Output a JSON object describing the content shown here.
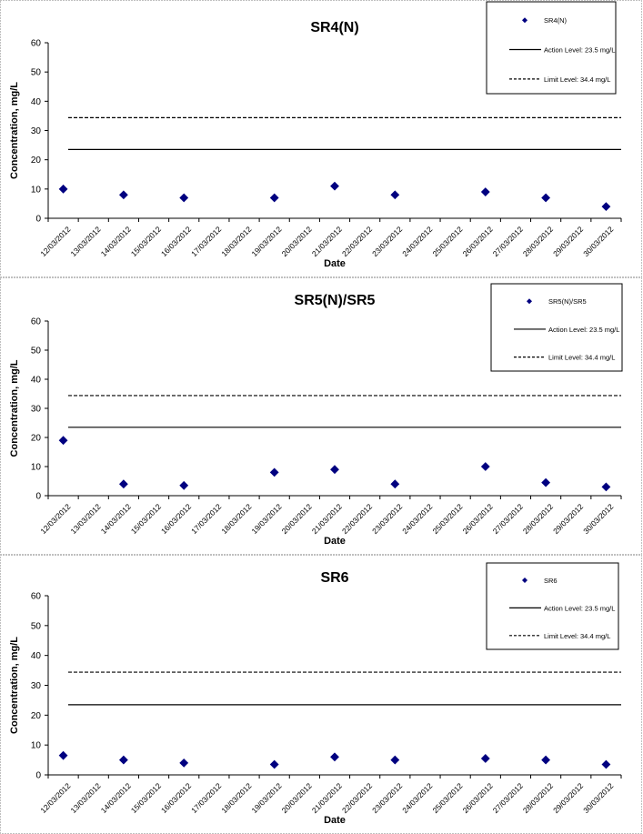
{
  "chart_data": [
    {
      "type": "scatter",
      "title": "SR4(N)",
      "xlabel": "Date",
      "ylabel": "Concentration, mg/L",
      "ylim": [
        0,
        60
      ],
      "yticks": [
        "0",
        "10",
        "20",
        "30",
        "40",
        "50",
        "60"
      ],
      "categories": [
        "12/03/2012",
        "13/03/2012",
        "14/03/2012",
        "15/03/2012",
        "16/03/2012",
        "17/03/2012",
        "18/03/2012",
        "19/03/2012",
        "20/03/2012",
        "21/03/2012",
        "22/03/2012",
        "23/03/2012",
        "24/03/2012",
        "25/03/2012",
        "26/03/2012",
        "27/03/2012",
        "28/03/2012",
        "29/03/2012",
        "30/03/2012"
      ],
      "series": [
        {
          "name": "SR4(N)",
          "color": "#000080",
          "points": [
            {
              "x": "12/03/2012",
              "y": 10
            },
            {
              "x": "14/03/2012",
              "y": 8
            },
            {
              "x": "16/03/2012",
              "y": 7
            },
            {
              "x": "19/03/2012",
              "y": 7
            },
            {
              "x": "21/03/2012",
              "y": 11
            },
            {
              "x": "23/03/2012",
              "y": 8
            },
            {
              "x": "26/03/2012",
              "y": 9
            },
            {
              "x": "28/03/2012",
              "y": 7
            },
            {
              "x": "30/03/2012",
              "y": 4
            }
          ]
        }
      ],
      "reference_lines": [
        {
          "label": "Action Level: 23.5 mg/L",
          "value": 23.5,
          "style": "solid"
        },
        {
          "label": "Limit Level: 34.4 mg/L",
          "value": 34.4,
          "style": "dashed"
        }
      ],
      "grid": false,
      "legend_position": "top-right"
    },
    {
      "type": "scatter",
      "title": "SR5(N)/SR5",
      "xlabel": "Date",
      "ylabel": "Concentration, mg/L",
      "ylim": [
        0,
        60
      ],
      "yticks": [
        "0",
        "10",
        "20",
        "30",
        "40",
        "50",
        "60"
      ],
      "categories": [
        "12/03/2012",
        "13/03/2012",
        "14/03/2012",
        "15/03/2012",
        "16/03/2012",
        "17/03/2012",
        "18/03/2012",
        "19/03/2012",
        "20/03/2012",
        "21/03/2012",
        "22/03/2012",
        "23/03/2012",
        "24/03/2012",
        "25/03/2012",
        "26/03/2012",
        "27/03/2012",
        "28/03/2012",
        "29/03/2012",
        "30/03/2012"
      ],
      "series": [
        {
          "name": "SR5(N)/SR5",
          "color": "#000080",
          "points": [
            {
              "x": "12/03/2012",
              "y": 19
            },
            {
              "x": "14/03/2012",
              "y": 4
            },
            {
              "x": "16/03/2012",
              "y": 3.5
            },
            {
              "x": "19/03/2012",
              "y": 8
            },
            {
              "x": "21/03/2012",
              "y": 9
            },
            {
              "x": "23/03/2012",
              "y": 4
            },
            {
              "x": "26/03/2012",
              "y": 10
            },
            {
              "x": "28/03/2012",
              "y": 4.5
            },
            {
              "x": "30/03/2012",
              "y": 3
            }
          ]
        }
      ],
      "reference_lines": [
        {
          "label": "Action Level: 23.5 mg/L",
          "value": 23.5,
          "style": "solid"
        },
        {
          "label": "Limit Level: 34.4 mg/L",
          "value": 34.4,
          "style": "dashed"
        }
      ],
      "grid": false,
      "legend_position": "top-right"
    },
    {
      "type": "scatter",
      "title": "SR6",
      "xlabel": "Date",
      "ylabel": "Concentration, mg/L",
      "ylim": [
        0,
        60
      ],
      "yticks": [
        "0",
        "10",
        "20",
        "30",
        "40",
        "50",
        "60"
      ],
      "categories": [
        "12/03/2012",
        "13/03/2012",
        "14/03/2012",
        "15/03/2012",
        "16/03/2012",
        "17/03/2012",
        "18/03/2012",
        "19/03/2012",
        "20/03/2012",
        "21/03/2012",
        "22/03/2012",
        "23/03/2012",
        "24/03/2012",
        "25/03/2012",
        "26/03/2012",
        "27/03/2012",
        "28/03/2012",
        "29/03/2012",
        "30/03/2012"
      ],
      "series": [
        {
          "name": "SR6",
          "color": "#000080",
          "points": [
            {
              "x": "12/03/2012",
              "y": 6.5
            },
            {
              "x": "14/03/2012",
              "y": 5
            },
            {
              "x": "16/03/2012",
              "y": 4
            },
            {
              "x": "19/03/2012",
              "y": 3.5
            },
            {
              "x": "21/03/2012",
              "y": 6
            },
            {
              "x": "23/03/2012",
              "y": 5
            },
            {
              "x": "26/03/2012",
              "y": 5.5
            },
            {
              "x": "28/03/2012",
              "y": 5
            },
            {
              "x": "30/03/2012",
              "y": 3.5
            }
          ]
        }
      ],
      "reference_lines": [
        {
          "label": "Action Level: 23.5 mg/L",
          "value": 23.5,
          "style": "solid"
        },
        {
          "label": "Limit Level: 34.4 mg/L",
          "value": 34.4,
          "style": "dashed"
        }
      ],
      "grid": false,
      "legend_position": "top-right"
    }
  ]
}
